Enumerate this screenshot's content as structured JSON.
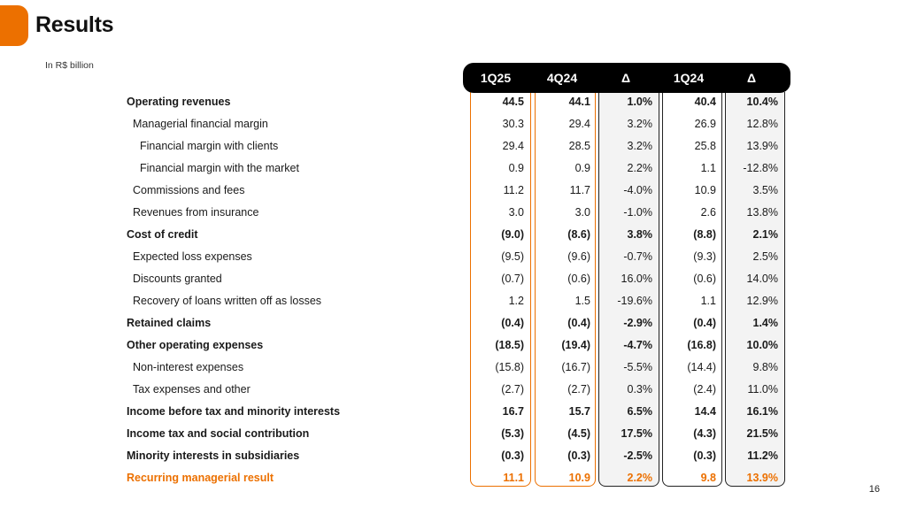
{
  "header": {
    "title": "Results",
    "subtitle": "In R$ billion"
  },
  "columns": [
    "1Q25",
    "4Q24",
    "Δ",
    "1Q24",
    "Δ"
  ],
  "rows": [
    {
      "label": "Operating revenues",
      "level": 0,
      "bold": true,
      "values": [
        "44.5",
        "44.1",
        "1.0%",
        "40.4",
        "10.4%"
      ]
    },
    {
      "label": "Managerial financial margin",
      "level": 1,
      "bold": false,
      "values": [
        "30.3",
        "29.4",
        "3.2%",
        "26.9",
        "12.8%"
      ]
    },
    {
      "label": "Financial margin with clients",
      "level": 2,
      "bold": false,
      "values": [
        "29.4",
        "28.5",
        "3.2%",
        "25.8",
        "13.9%"
      ]
    },
    {
      "label": "Financial margin with the market",
      "level": 2,
      "bold": false,
      "values": [
        "0.9",
        "0.9",
        "2.2%",
        "1.1",
        "-12.8%"
      ]
    },
    {
      "label": "Commissions and fees",
      "level": 1,
      "bold": false,
      "values": [
        "11.2",
        "11.7",
        "-4.0%",
        "10.9",
        "3.5%"
      ]
    },
    {
      "label": "Revenues from insurance",
      "level": 1,
      "bold": false,
      "values": [
        "3.0",
        "3.0",
        "-1.0%",
        "2.6",
        "13.8%"
      ]
    },
    {
      "label": "Cost of credit",
      "level": 0,
      "bold": true,
      "values": [
        "(9.0)",
        "(8.6)",
        "3.8%",
        "(8.8)",
        "2.1%"
      ]
    },
    {
      "label": "Expected loss expenses",
      "level": 1,
      "bold": false,
      "values": [
        "(9.5)",
        "(9.6)",
        "-0.7%",
        "(9.3)",
        "2.5%"
      ]
    },
    {
      "label": "Discounts granted",
      "level": 1,
      "bold": false,
      "values": [
        "(0.7)",
        "(0.6)",
        "16.0%",
        "(0.6)",
        "14.0%"
      ]
    },
    {
      "label": "Recovery of loans written off as losses",
      "level": 1,
      "bold": false,
      "values": [
        "1.2",
        "1.5",
        "-19.6%",
        "1.1",
        "12.9%"
      ]
    },
    {
      "label": "Retained claims",
      "level": 0,
      "bold": true,
      "values": [
        "(0.4)",
        "(0.4)",
        "-2.9%",
        "(0.4)",
        "1.4%"
      ]
    },
    {
      "label": "Other operating expenses",
      "level": 0,
      "bold": true,
      "values": [
        "(18.5)",
        "(19.4)",
        "-4.7%",
        "(16.8)",
        "10.0%"
      ]
    },
    {
      "label": "Non-interest expenses",
      "level": 1,
      "bold": false,
      "values": [
        "(15.8)",
        "(16.7)",
        "-5.5%",
        "(14.4)",
        "9.8%"
      ]
    },
    {
      "label": "Tax expenses and other",
      "level": 1,
      "bold": false,
      "values": [
        "(2.7)",
        "(2.7)",
        "0.3%",
        "(2.4)",
        "11.0%"
      ]
    },
    {
      "label": "Income before tax and minority interests",
      "level": 0,
      "bold": true,
      "values": [
        "16.7",
        "15.7",
        "6.5%",
        "14.4",
        "16.1%"
      ]
    },
    {
      "label": "Income tax and social contribution",
      "level": 0,
      "bold": true,
      "values": [
        "(5.3)",
        "(4.5)",
        "17.5%",
        "(4.3)",
        "21.5%"
      ]
    },
    {
      "label": "Minority interests in subsidiaries",
      "level": 0,
      "bold": true,
      "values": [
        "(0.3)",
        "(0.3)",
        "-2.5%",
        "(0.3)",
        "11.2%"
      ]
    },
    {
      "label": "Recurring managerial result",
      "level": 0,
      "bold": true,
      "highlight": true,
      "values": [
        "11.1",
        "10.9",
        "2.2%",
        "9.8",
        "13.9%"
      ]
    }
  ],
  "footer": {
    "page_number": "16"
  },
  "colors": {
    "accent": "#ec7000",
    "header_bg": "#000000",
    "shaded_col": "#f3f3f3"
  }
}
